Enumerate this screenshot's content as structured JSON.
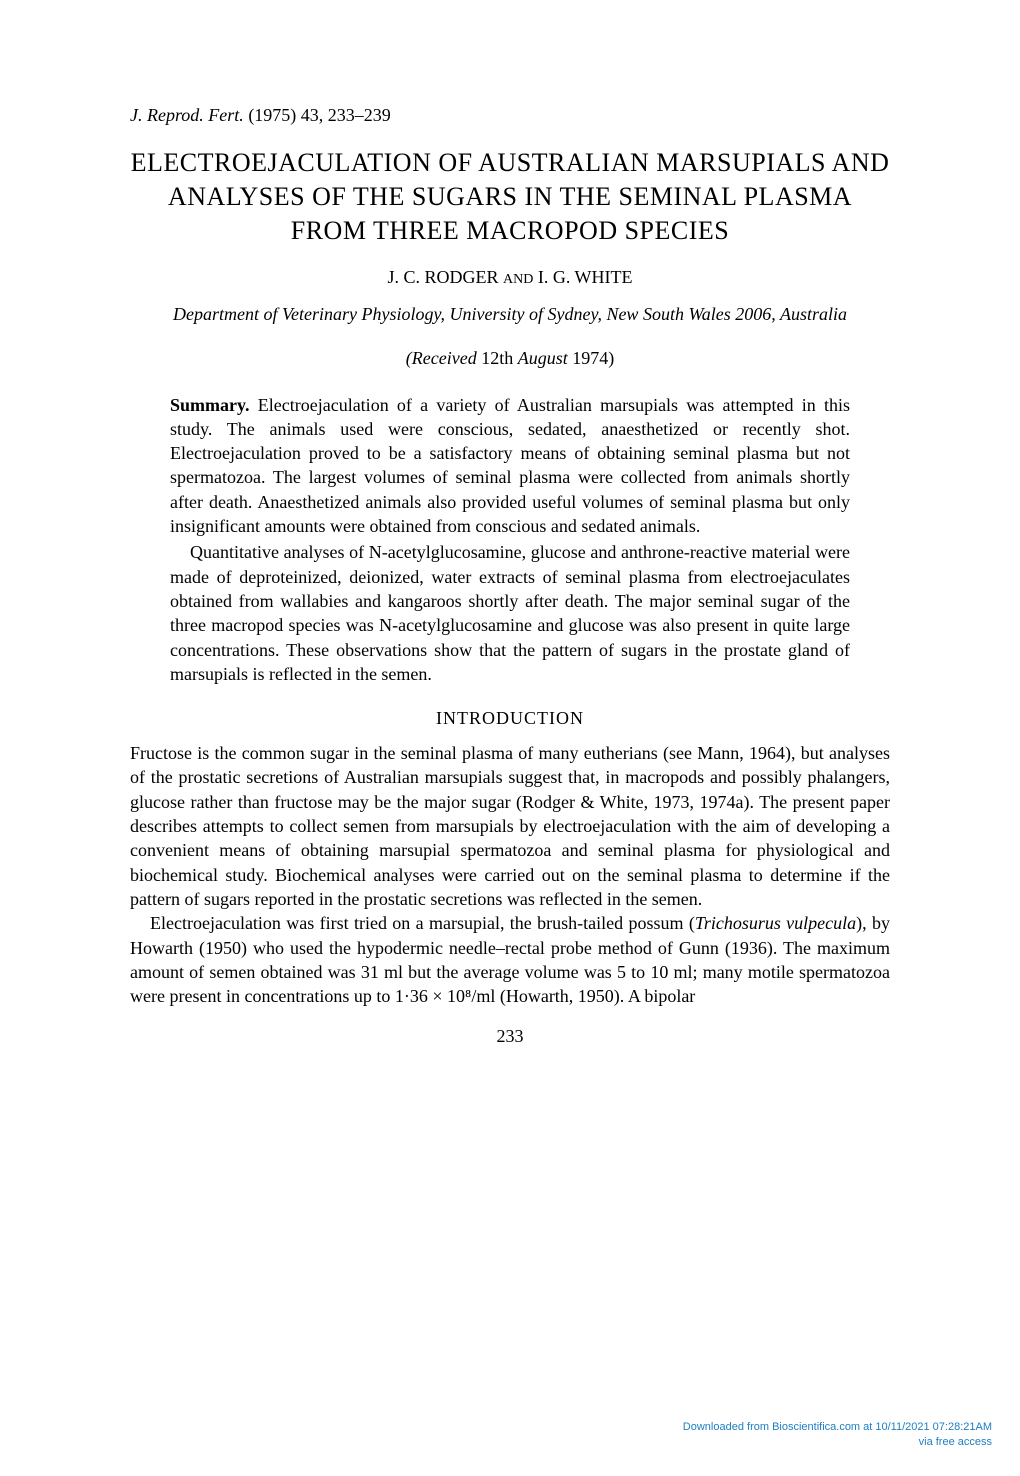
{
  "journal": {
    "name": "J. Reprod. Fert.",
    "year_vol_pages": "(1975) 43, 233–239"
  },
  "title": "ELECTROEJACULATION OF AUSTRALIAN MARSUPIALS AND ANALYSES OF THE SUGARS IN THE SEMINAL PLASMA FROM THREE MACROPOD SPECIES",
  "authors": "J. C. RODGER and I. G. WHITE",
  "affiliation": "Department of Veterinary Physiology, University of Sydney, New South Wales 2006, Australia",
  "received_label": "(Received",
  "received_date": " 12th ",
  "received_month": "August",
  "received_year": " 1974)",
  "summary": {
    "label": "Summary.",
    "p1": " Electroejaculation of a variety of Australian marsupials was attempted in this study. The animals used were conscious, sedated, anaesthetized or recently shot. Electroejaculation proved to be a satisfactory means of obtaining seminal plasma but not spermatozoa. The largest volumes of seminal plasma were collected from animals shortly after death. Anaesthetized animals also provided useful volumes of seminal plasma but only insignificant amounts were obtained from conscious and sedated animals.",
    "p2": "Quantitative analyses of N-acetylglucosamine, glucose and anthrone-reactive material were made of deproteinized, deionized, water extracts of seminal plasma from electroejaculates obtained from wallabies and kangaroos shortly after death. The major seminal sugar of the three macropod species was N-acetylglucosamine and glucose was also present in quite large concentrations. These observations show that the pattern of sugars in the prostate gland of marsupials is reflected in the semen."
  },
  "section_heading": "INTRODUCTION",
  "intro": {
    "p1": "Fructose is the common sugar in the seminal plasma of many eutherians (see Mann, 1964), but analyses of the prostatic secretions of Australian marsupials suggest that, in macropods and possibly phalangers, glucose rather than fructose may be the major sugar (Rodger & White, 1973, 1974a). The present paper describes attempts to collect semen from marsupials by electroejaculation with the aim of developing a convenient means of obtaining marsupial spermatozoa and seminal plasma for physiological and biochemical study. Biochemical analyses were carried out on the seminal plasma to determine if the pattern of sugars reported in the prostatic secretions was reflected in the semen.",
    "p2a": "Electroejaculation was first tried on a marsupial, the brush-tailed possum (",
    "p2_species": "Trichosurus vulpecula",
    "p2b": "), by Howarth (1950) who used the hypodermic needle–rectal probe method of Gunn (1936). The maximum amount of semen obtained was 31 ml but the average volume was 5 to 10 ml; many motile spermatozoa were present in concentrations up to 1·36 × 10⁸/ml (Howarth, 1950). A bipolar"
  },
  "page_number": "233",
  "footer": {
    "line1": "Downloaded from Bioscientifica.com at 10/11/2021 07:28:21AM",
    "line2": "via free access"
  }
}
